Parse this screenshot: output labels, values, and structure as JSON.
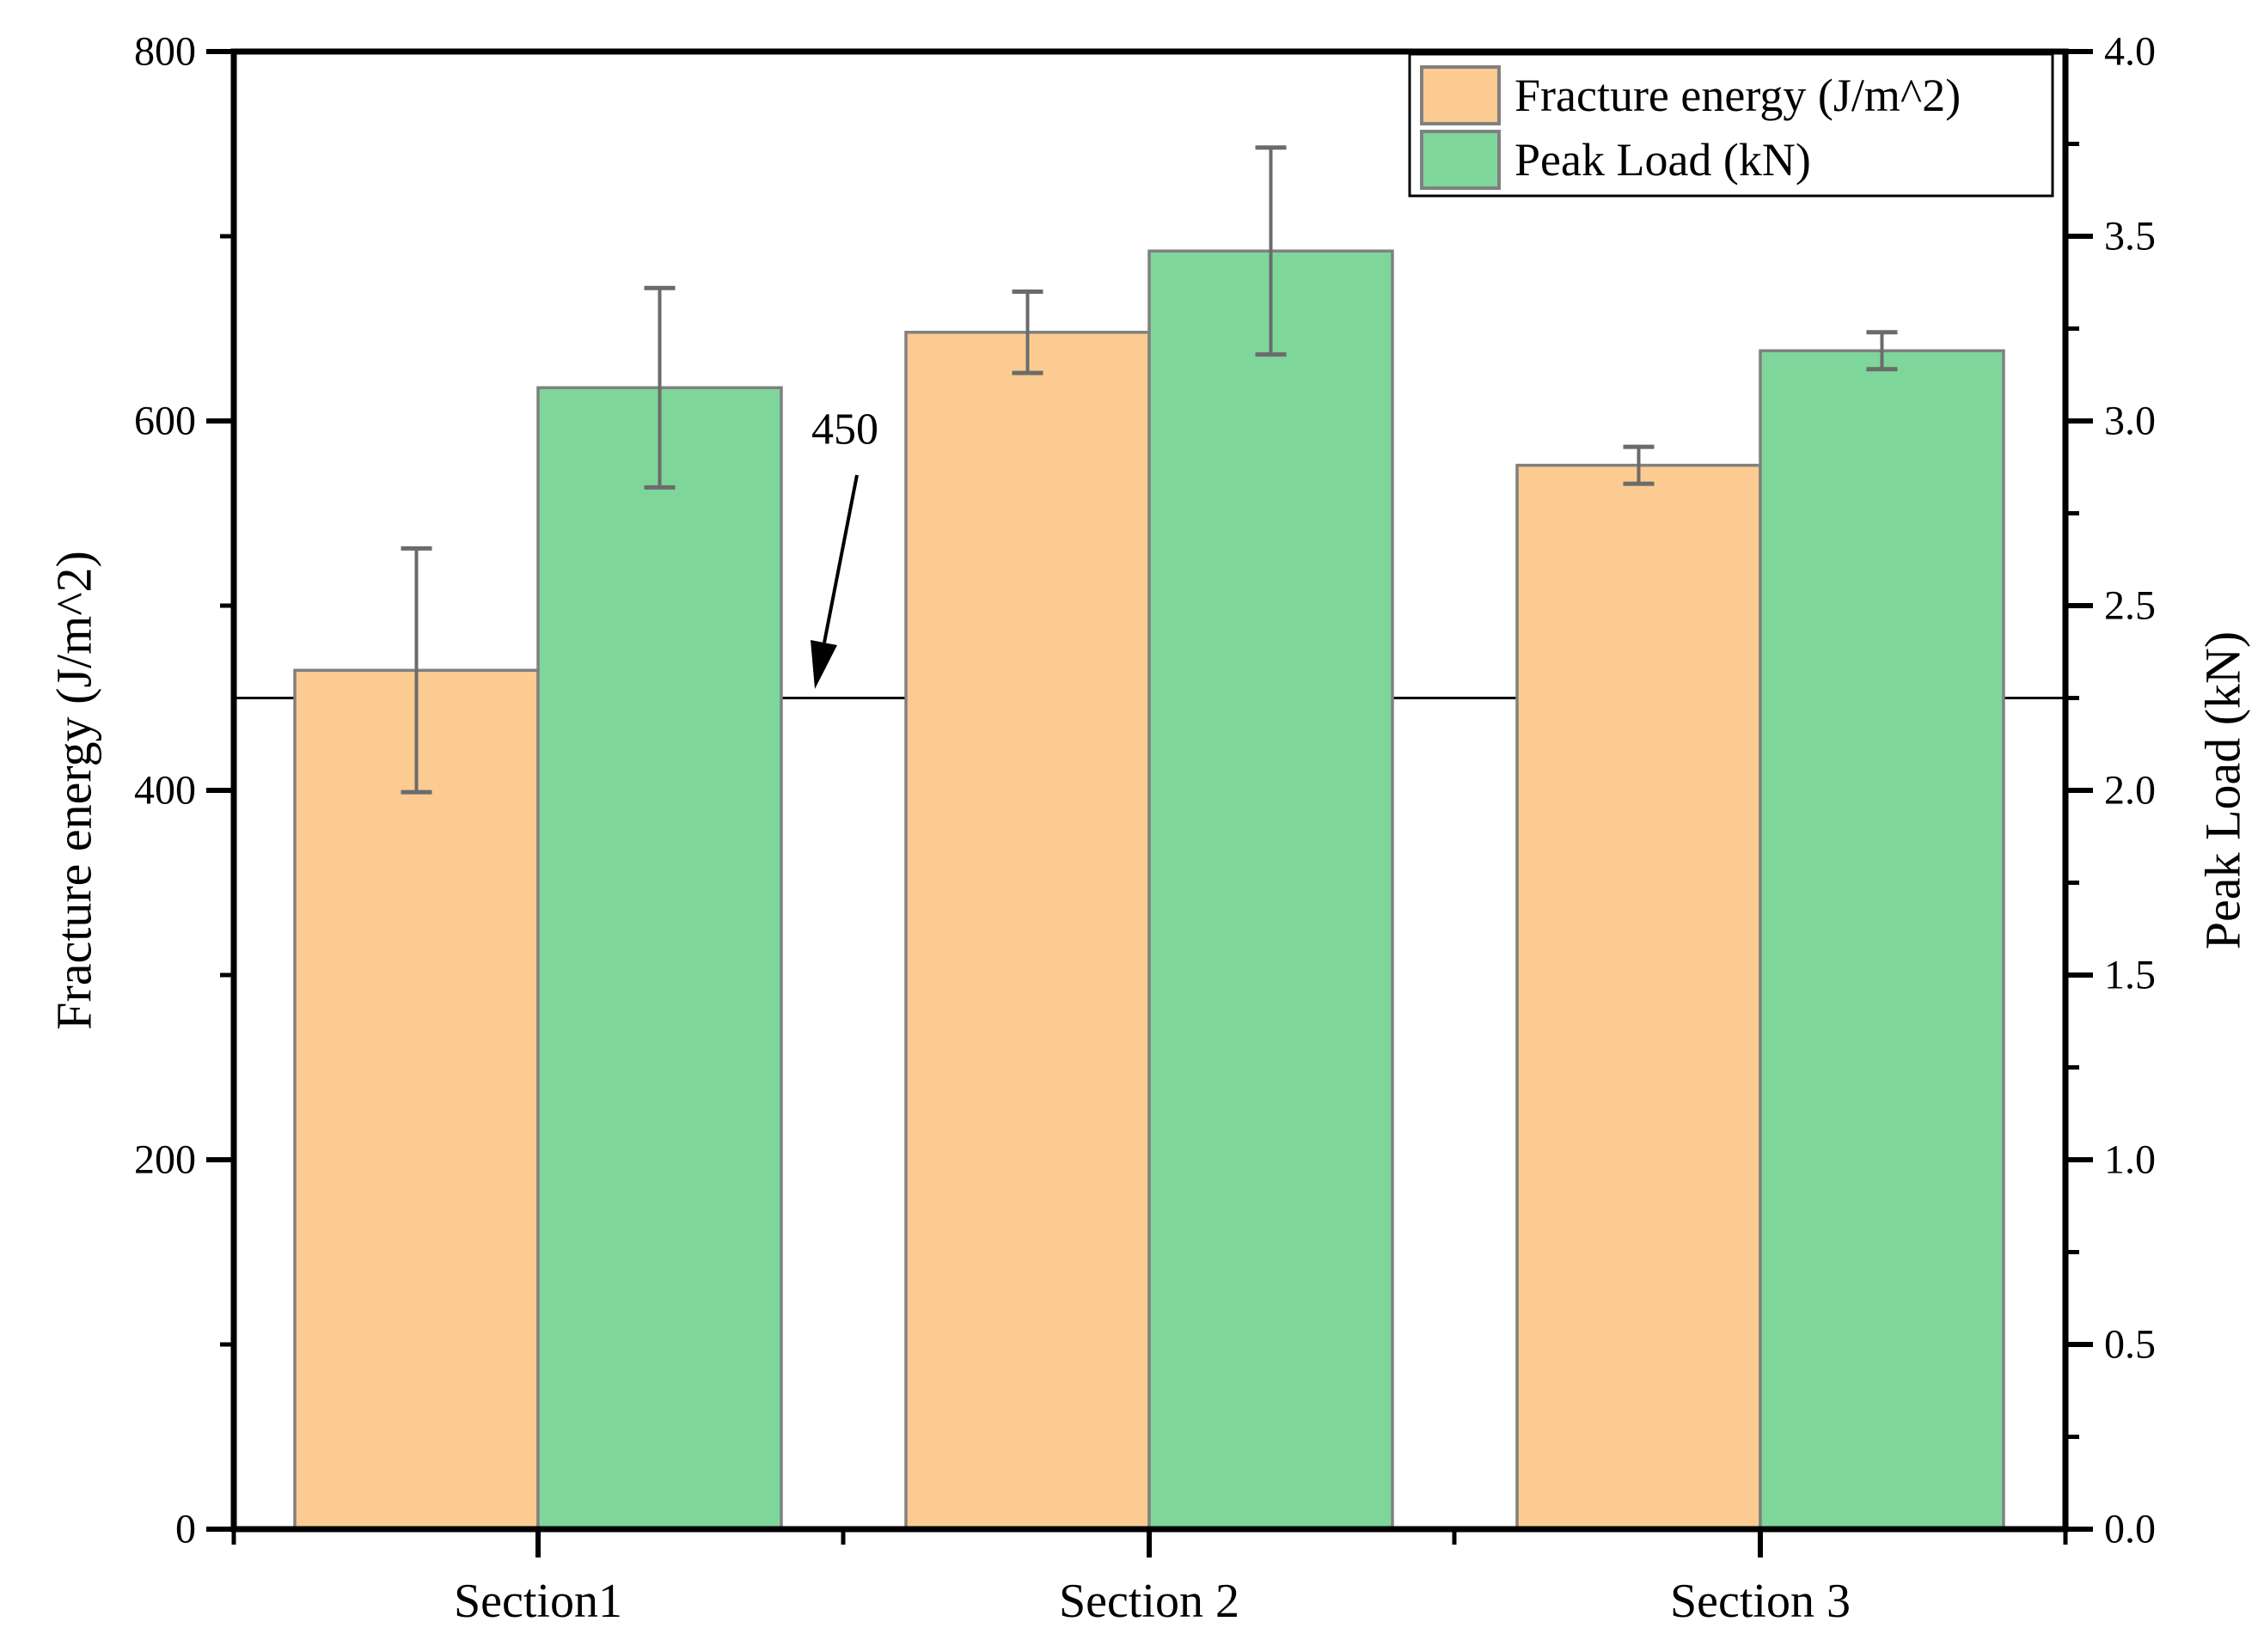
{
  "chart_data": {
    "type": "bar",
    "categories": [
      "Section1",
      "Section 2",
      "Section 3"
    ],
    "series": [
      {
        "name": "Fracture energy (J/m^2)",
        "axis": "left",
        "color": "#FBCB91",
        "border_color": "#808080",
        "values": [
          465,
          648,
          576
        ],
        "errors": [
          66,
          22,
          10
        ]
      },
      {
        "name": "Peak Load (kN)",
        "axis": "right",
        "color": "#7ED69B",
        "border_color": "#808080",
        "values": [
          3.09,
          3.46,
          3.19
        ],
        "errors": [
          0.27,
          0.28,
          0.05
        ]
      }
    ],
    "left_axis": {
      "title": "Fracture energy (J/m^2)",
      "min": 0,
      "max": 800,
      "major_step": 200,
      "minor_step": 100,
      "tick_labels": [
        "0",
        "200",
        "400",
        "600",
        "800"
      ]
    },
    "right_axis": {
      "title": "Peak Load (kN)",
      "min": 0,
      "max": 4.0,
      "major_step": 0.5,
      "minor_step": 0.25,
      "tick_labels": [
        "0.0",
        "0.5",
        "1.0",
        "1.5",
        "2.0",
        "2.5",
        "3.0",
        "3.5",
        "4.0"
      ]
    },
    "reference_line": {
      "value": 450,
      "label": "450",
      "color": "#000000"
    },
    "legend": {
      "position": "top-right",
      "entries": [
        "Fracture energy (J/m^2)",
        "Peak Load (kN)"
      ]
    },
    "grid": false,
    "error_bar_color": "#6b6b6b",
    "axis_color": "#000000",
    "background_color": "#ffffff"
  }
}
